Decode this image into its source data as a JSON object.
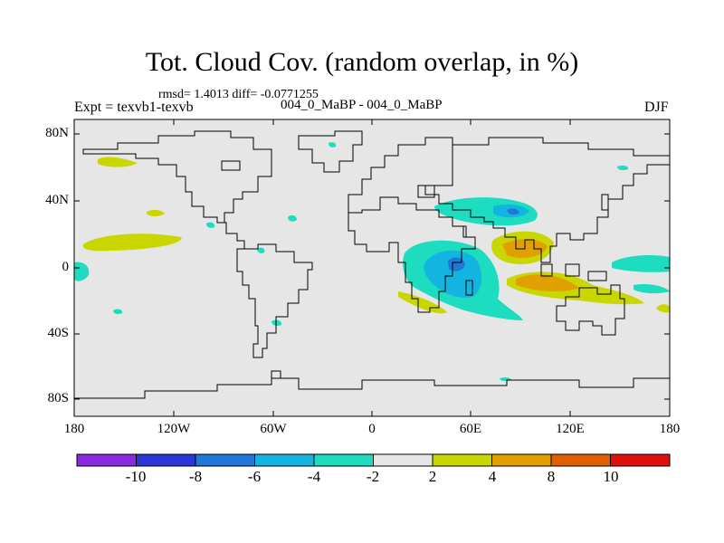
{
  "title": "Tot. Cloud Cov. (random overlap, in %)",
  "stats": "rmsd= 1.4013 diff= -0.0771255",
  "experiment": "Expt = texvb1-texvb",
  "subtitle": "004_0_MaBP - 004_0_MaBP",
  "season": "DJF",
  "lat_labels": [
    "80N",
    "40N",
    "0",
    "40S",
    "80S"
  ],
  "lon_labels": [
    "180",
    "120W",
    "60W",
    "0",
    "60E",
    "120E",
    "180"
  ],
  "colorbar": {
    "colors": [
      "#8a2be2",
      "#2b36d6",
      "#1f78d8",
      "#12b4e0",
      "#1ddcbf",
      "#e6e6e6",
      "#cad600",
      "#e0a000",
      "#e06000",
      "#e01010"
    ],
    "labels": [
      "-10",
      "-8",
      "-6",
      "-4",
      "-2",
      "2",
      "4",
      "8",
      "10"
    ]
  },
  "map": {
    "background": "#e6e6e6",
    "coast_color": "#000000"
  }
}
